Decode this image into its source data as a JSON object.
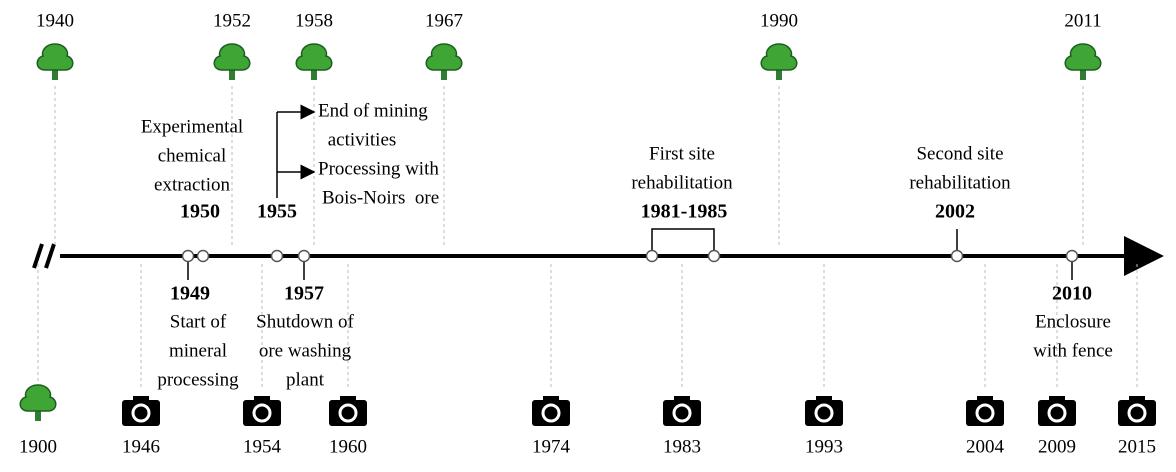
{
  "top_markers": [
    "1940",
    "1952",
    "1958",
    "1967",
    "1990",
    "2011"
  ],
  "bottom_markers": [
    {
      "year": "1900",
      "icon": "tree"
    },
    {
      "year": "1946",
      "icon": "camera"
    },
    {
      "year": "1954",
      "icon": "camera"
    },
    {
      "year": "1960",
      "icon": "camera"
    },
    {
      "year": "1974",
      "icon": "camera"
    },
    {
      "year": "1983",
      "icon": "camera"
    },
    {
      "year": "1993",
      "icon": "camera"
    },
    {
      "year": "2004",
      "icon": "camera"
    },
    {
      "year": "2009",
      "icon": "camera"
    },
    {
      "year": "2015",
      "icon": "camera"
    }
  ],
  "events_above": [
    {
      "date": "1950",
      "notes": [
        [
          "Experimental",
          "chemical",
          "extraction"
        ]
      ]
    },
    {
      "date": "1955",
      "notes": [
        [
          "End of mining",
          "activities"
        ],
        [
          "Processing with",
          "Bois-Noirs  ore"
        ]
      ]
    },
    {
      "date": "1981-1985",
      "notes": [
        [
          "First site",
          "rehabilitation"
        ]
      ]
    },
    {
      "date": "2002",
      "notes": [
        [
          "Second site",
          "rehabilitation"
        ]
      ]
    }
  ],
  "events_below": [
    {
      "date": "1949",
      "notes": [
        [
          "Start of",
          "mineral",
          "processing"
        ]
      ]
    },
    {
      "date": "1957",
      "notes": [
        [
          "Shutdown of",
          "ore washing",
          "plant"
        ]
      ]
    },
    {
      "date": "2010",
      "notes": [
        [
          "Enclosure",
          "with fence"
        ]
      ]
    }
  ]
}
